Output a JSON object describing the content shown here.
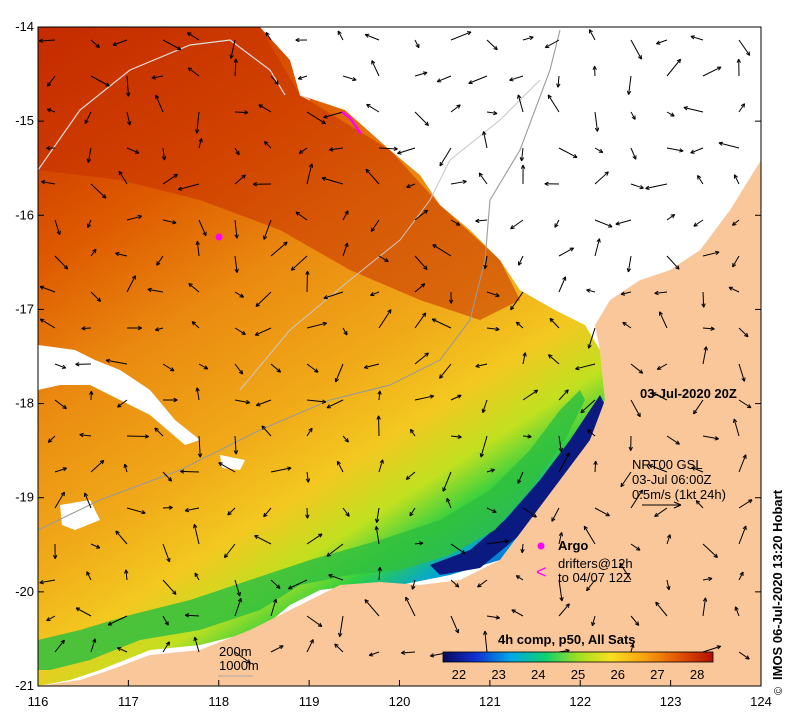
{
  "map": {
    "longitude_ticks": [
      "116",
      "117",
      "118",
      "119",
      "120",
      "121",
      "122",
      "123",
      "124"
    ],
    "latitude_ticks": [
      "-14",
      "-15",
      "-16",
      "-17",
      "-18",
      "-19",
      "-20",
      "-21"
    ],
    "date_label": "03-Jul-2020 20Z",
    "currents": {
      "source": "NRT00 GSL",
      "time": "03-Jul 06:00Z",
      "scale": "0.5m/s (1kt 24h)"
    },
    "argo_label": "Argo",
    "drifters_line1": "drifters@12h",
    "drifters_line2": "to 04/07 12Z",
    "bathymetry": {
      "contour1": "200m",
      "contour2": "1000m"
    },
    "colorbar": {
      "title": "4h comp, p50, All Sats",
      "ticks": [
        "22",
        "23",
        "24",
        "25",
        "26",
        "27",
        "28"
      ],
      "min": 21.6,
      "max": 28.4
    },
    "credit": "IMOS 06-Jul-2020 13:20 Hobart",
    "colors": {
      "land": "#f9c79a",
      "warm": "#c83000",
      "cold": "#101060",
      "drifter": "#ff00ff"
    }
  }
}
